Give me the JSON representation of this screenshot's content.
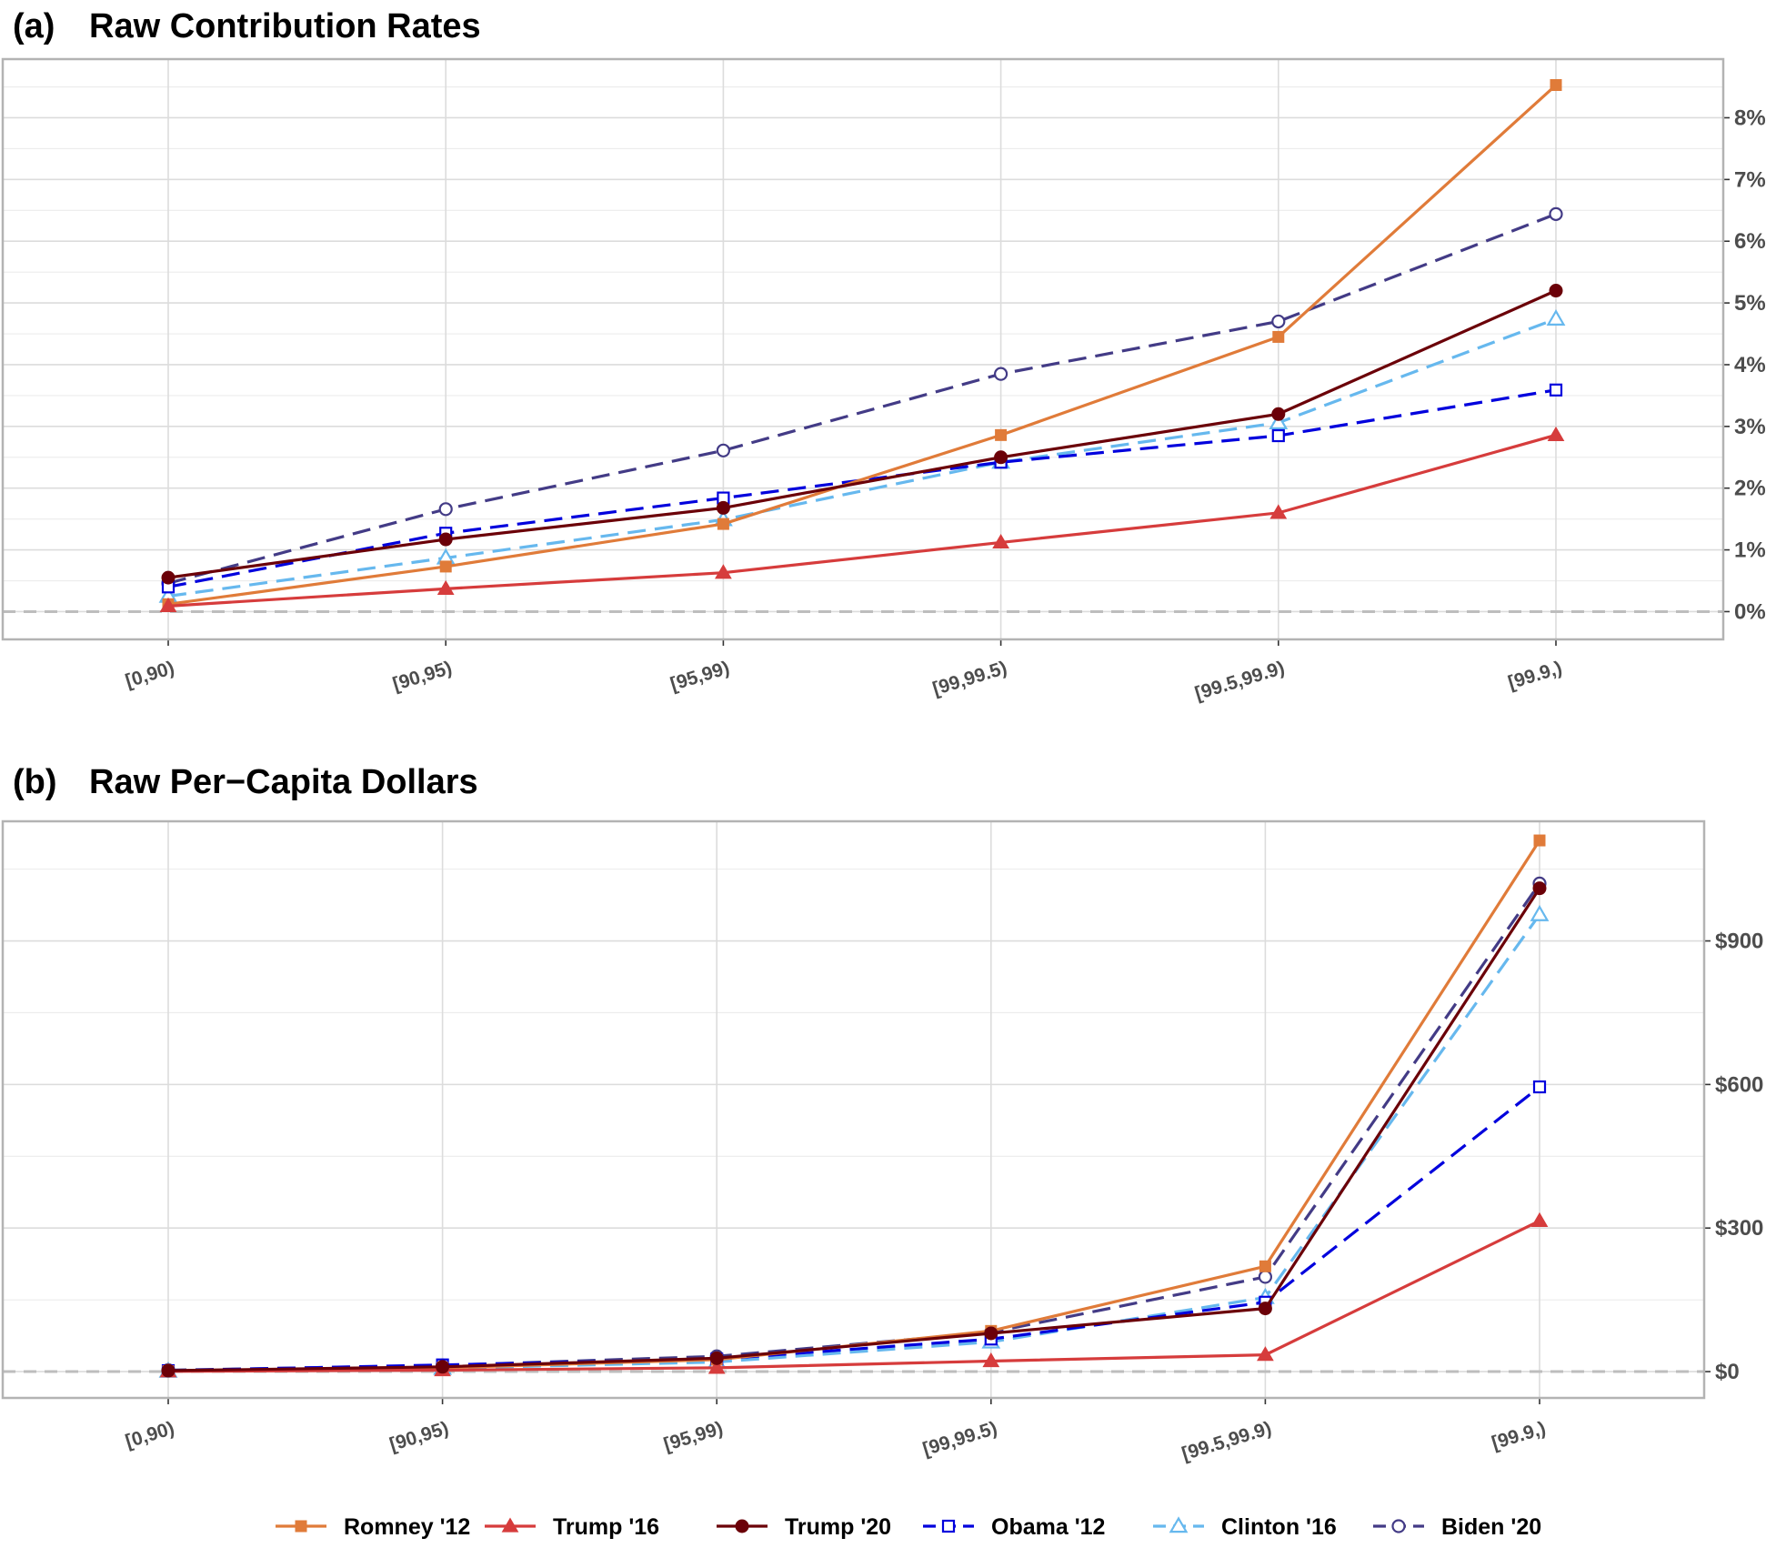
{
  "chart_data": [
    {
      "type": "line",
      "panel_label": "(a)",
      "title": "Raw Contribution Rates",
      "xlabel": "",
      "ylabel": "",
      "categories": [
        "[0,90)",
        "[90,95)",
        "[95,99)",
        "[99,99.5)",
        "[99.5,99.9)",
        "[99.9,)"
      ],
      "yticks": [
        0,
        1,
        2,
        3,
        4,
        5,
        6,
        7,
        8
      ],
      "ytick_labels": [
        "0%",
        "1%",
        "2%",
        "3%",
        "4%",
        "5%",
        "6%",
        "7%",
        "8%"
      ],
      "ylim": [
        -0.45,
        8.95
      ],
      "grid": true,
      "zero_line": true,
      "y_axis_side": "right",
      "series": [
        {
          "name": "Romney '12",
          "values": [
            0.12,
            0.73,
            1.42,
            2.86,
            4.45,
            8.53
          ]
        },
        {
          "name": "Trump '16",
          "values": [
            0.09,
            0.37,
            0.63,
            1.12,
            1.6,
            2.86
          ]
        },
        {
          "name": "Trump '20",
          "values": [
            0.55,
            1.17,
            1.68,
            2.5,
            3.2,
            5.2
          ]
        },
        {
          "name": "Obama '12",
          "values": [
            0.4,
            1.27,
            1.84,
            2.42,
            2.85,
            3.59
          ]
        },
        {
          "name": "Clinton '16",
          "values": [
            0.25,
            0.87,
            1.49,
            2.42,
            3.06,
            4.74
          ]
        },
        {
          "name": "Biden '20",
          "values": [
            0.46,
            1.66,
            2.61,
            3.85,
            4.7,
            6.44
          ]
        }
      ]
    },
    {
      "type": "line",
      "panel_label": "(b)",
      "title": "Raw Per−Capita Dollars",
      "xlabel": "",
      "ylabel": "",
      "categories": [
        "[0,90)",
        "[90,95)",
        "[95,99)",
        "[99,99.5)",
        "[99.5,99.9)",
        "[99.9,)"
      ],
      "yticks": [
        0,
        300,
        600,
        900
      ],
      "ytick_labels": [
        "$0",
        "$300",
        "$600",
        "$900"
      ],
      "ylim": [
        -55,
        1150
      ],
      "grid": true,
      "zero_line": true,
      "y_axis_side": "right",
      "series": [
        {
          "name": "Romney '12",
          "values": [
            1,
            8,
            25,
            85,
            220,
            1110
          ]
        },
        {
          "name": "Trump '16",
          "values": [
            0.5,
            3,
            8,
            22,
            35,
            315
          ]
        },
        {
          "name": "Trump '20",
          "values": [
            2,
            10,
            28,
            80,
            132,
            1010
          ]
        },
        {
          "name": "Obama '12",
          "values": [
            2,
            14,
            26,
            68,
            145,
            595
          ]
        },
        {
          "name": "Clinton '16",
          "values": [
            1,
            7,
            20,
            62,
            155,
            955
          ]
        },
        {
          "name": "Biden '20",
          "values": [
            3,
            13,
            32,
            82,
            198,
            1020
          ]
        }
      ]
    }
  ],
  "legend": {
    "placement": "bottom",
    "items": [
      {
        "name": "Romney '12",
        "color": "#e07b39",
        "marker": "square",
        "dash": "solid"
      },
      {
        "name": "Trump '16",
        "color": "#d63c3c",
        "marker": "triangle",
        "dash": "solid"
      },
      {
        "name": "Trump '20",
        "color": "#6b0008",
        "marker": "circle",
        "dash": "solid"
      },
      {
        "name": "Obama '12",
        "color": "#0000dd",
        "marker": "square-open",
        "dash": "dashed"
      },
      {
        "name": "Clinton '16",
        "color": "#66b8ee",
        "marker": "triangle-open",
        "dash": "dashed"
      },
      {
        "name": "Biden '20",
        "color": "#433b86",
        "marker": "circle-open",
        "dash": "dashed"
      }
    ]
  }
}
